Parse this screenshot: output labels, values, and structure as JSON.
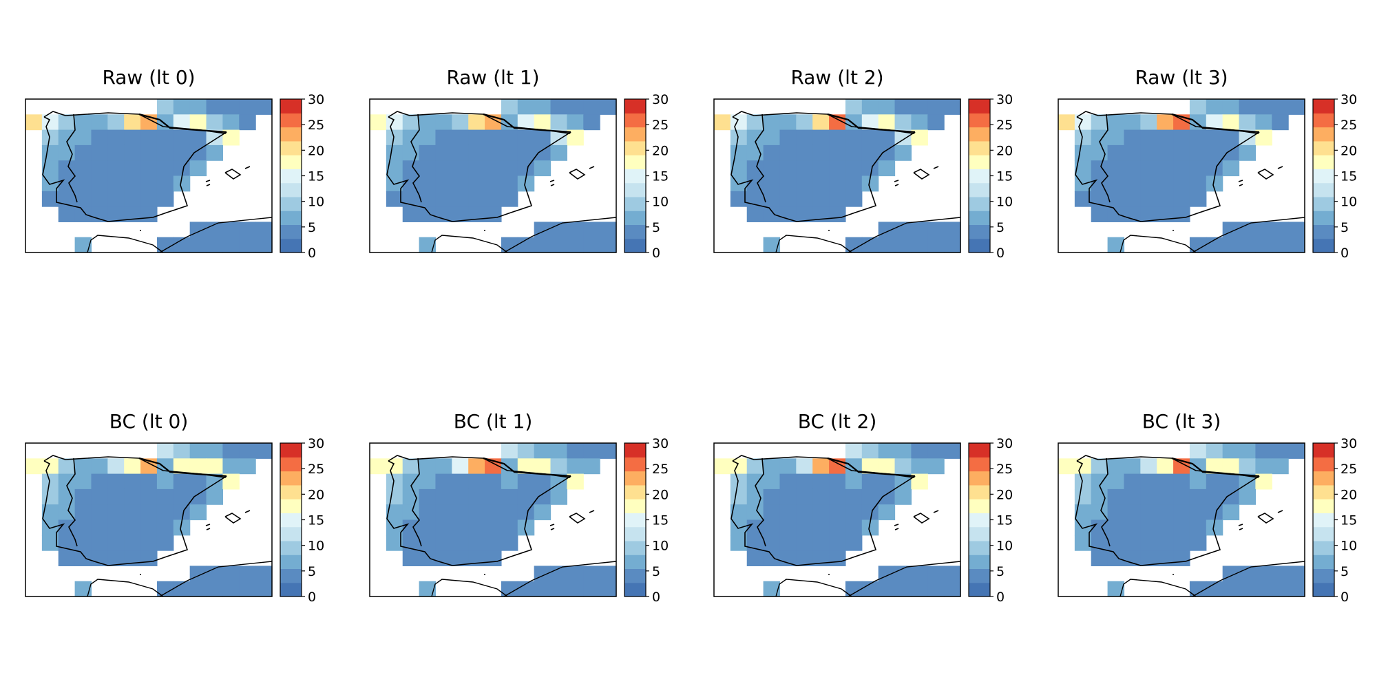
{
  "figure": {
    "panels": [
      {
        "title": "Raw (lt 0)",
        "field": "raw0"
      },
      {
        "title": "Raw (lt 1)",
        "field": "raw1"
      },
      {
        "title": "Raw (lt 2)",
        "field": "raw2"
      },
      {
        "title": "Raw (lt 3)",
        "field": "raw3"
      },
      {
        "title": "BC (lt 0)",
        "field": "bc0"
      },
      {
        "title": "BC (lt 1)",
        "field": "bc1"
      },
      {
        "title": "BC (lt 2)",
        "field": "bc2"
      },
      {
        "title": "BC (lt 3)",
        "field": "bc3"
      }
    ],
    "colorbar": {
      "range": [
        0,
        30
      ],
      "ticks": [
        "0",
        "5",
        "10",
        "15",
        "20",
        "25",
        "30"
      ],
      "colors": [
        "#4575b4",
        "#5a8bc1",
        "#74add1",
        "#9ecae1",
        "#c6e3ef",
        "#e0f3f8",
        "#ffffbf",
        "#fee090",
        "#fdae61",
        "#f46d43",
        "#d73027"
      ]
    },
    "fields": {
      "raw0": [
        [
          null,
          null,
          null,
          null,
          null,
          null,
          null,
          null,
          10,
          7,
          6,
          5,
          5,
          5,
          4
        ],
        [
          20,
          16,
          10,
          6,
          6,
          9,
          20,
          23,
          6,
          14,
          18,
          10,
          7,
          5,
          null
        ],
        [
          null,
          10,
          8,
          6,
          5,
          5,
          5,
          5,
          5,
          5,
          5,
          13,
          18,
          null,
          null
        ],
        [
          null,
          8,
          6,
          5,
          4,
          4,
          4,
          4,
          5,
          5,
          5,
          6,
          null,
          null,
          null
        ],
        [
          null,
          6,
          5,
          4,
          4,
          4,
          4,
          4,
          5,
          5,
          6,
          null,
          null,
          null,
          null
        ],
        [
          null,
          6,
          5,
          4,
          4,
          4,
          4,
          4,
          5,
          6,
          null,
          null,
          null,
          null,
          null
        ],
        [
          null,
          5,
          5,
          4,
          4,
          4,
          4,
          4,
          5,
          null,
          null,
          null,
          null,
          null,
          null
        ],
        [
          null,
          null,
          5,
          5,
          4,
          4,
          5,
          5,
          null,
          null,
          null,
          null,
          null,
          null,
          null
        ],
        [
          null,
          null,
          null,
          null,
          null,
          null,
          null,
          null,
          null,
          null,
          5,
          5,
          5,
          5,
          5
        ],
        [
          null,
          null,
          null,
          8,
          null,
          null,
          null,
          null,
          5,
          5,
          5,
          5,
          5,
          5,
          5
        ]
      ],
      "raw1": [
        [
          null,
          null,
          null,
          null,
          null,
          null,
          null,
          null,
          10,
          7,
          6,
          5,
          5,
          5,
          4
        ],
        [
          19,
          15,
          10,
          6,
          6,
          9,
          21,
          24,
          6,
          14,
          18,
          10,
          7,
          5,
          null
        ],
        [
          null,
          10,
          8,
          6,
          5,
          5,
          5,
          5,
          5,
          5,
          5,
          13,
          17,
          null,
          null
        ],
        [
          null,
          8,
          6,
          5,
          4,
          4,
          4,
          4,
          5,
          5,
          5,
          6,
          null,
          null,
          null
        ],
        [
          null,
          6,
          5,
          4,
          4,
          4,
          4,
          4,
          5,
          5,
          6,
          null,
          null,
          null,
          null
        ],
        [
          null,
          6,
          5,
          4,
          4,
          4,
          4,
          4,
          5,
          6,
          null,
          null,
          null,
          null,
          null
        ],
        [
          null,
          5,
          5,
          4,
          4,
          4,
          4,
          4,
          5,
          null,
          null,
          null,
          null,
          null,
          null
        ],
        [
          null,
          null,
          5,
          5,
          4,
          4,
          5,
          5,
          null,
          null,
          null,
          null,
          null,
          null,
          null
        ],
        [
          null,
          null,
          null,
          null,
          null,
          null,
          null,
          null,
          null,
          null,
          5,
          5,
          5,
          5,
          5
        ],
        [
          null,
          null,
          null,
          8,
          null,
          null,
          null,
          null,
          5,
          5,
          5,
          5,
          5,
          5,
          5
        ]
      ],
      "raw2": [
        [
          null,
          null,
          null,
          null,
          null,
          null,
          null,
          null,
          9,
          7,
          6,
          5,
          5,
          5,
          4
        ],
        [
          20,
          16,
          10,
          6,
          6,
          9,
          21,
          25,
          6,
          14,
          17,
          10,
          7,
          5,
          null
        ],
        [
          null,
          10,
          8,
          6,
          5,
          5,
          5,
          5,
          5,
          5,
          5,
          13,
          17,
          null,
          null
        ],
        [
          null,
          8,
          6,
          5,
          4,
          4,
          4,
          4,
          5,
          5,
          5,
          6,
          null,
          null,
          null
        ],
        [
          null,
          6,
          5,
          4,
          4,
          4,
          4,
          4,
          5,
          5,
          6,
          null,
          null,
          null,
          null
        ],
        [
          null,
          6,
          5,
          4,
          4,
          4,
          4,
          4,
          5,
          6,
          null,
          null,
          null,
          null,
          null
        ],
        [
          null,
          5,
          5,
          4,
          4,
          4,
          4,
          4,
          5,
          null,
          null,
          null,
          null,
          null,
          null
        ],
        [
          null,
          null,
          5,
          5,
          4,
          4,
          5,
          5,
          null,
          null,
          null,
          null,
          null,
          null,
          null
        ],
        [
          null,
          null,
          null,
          null,
          null,
          null,
          null,
          null,
          null,
          null,
          5,
          5,
          5,
          5,
          5
        ],
        [
          null,
          null,
          null,
          8,
          null,
          null,
          null,
          null,
          5,
          5,
          5,
          5,
          5,
          5,
          5
        ]
      ],
      "raw3": [
        [
          null,
          null,
          null,
          null,
          null,
          null,
          null,
          null,
          10,
          7,
          6,
          5,
          5,
          5,
          4
        ],
        [
          20,
          16,
          10,
          6,
          6,
          9,
          22,
          26,
          6,
          14,
          18,
          10,
          7,
          5,
          null
        ],
        [
          null,
          10,
          8,
          6,
          5,
          5,
          5,
          5,
          5,
          5,
          5,
          13,
          17,
          null,
          null
        ],
        [
          null,
          8,
          6,
          5,
          4,
          4,
          4,
          4,
          5,
          5,
          5,
          6,
          null,
          null,
          null
        ],
        [
          null,
          6,
          5,
          4,
          4,
          4,
          4,
          4,
          5,
          5,
          6,
          null,
          null,
          null,
          null
        ],
        [
          null,
          6,
          5,
          4,
          4,
          4,
          4,
          4,
          5,
          6,
          null,
          null,
          null,
          null,
          null
        ],
        [
          null,
          5,
          5,
          4,
          4,
          4,
          4,
          4,
          5,
          null,
          null,
          null,
          null,
          null,
          null
        ],
        [
          null,
          null,
          5,
          5,
          4,
          4,
          5,
          5,
          null,
          null,
          null,
          null,
          null,
          null,
          null
        ],
        [
          null,
          null,
          null,
          null,
          null,
          null,
          null,
          null,
          null,
          null,
          5,
          5,
          5,
          5,
          5
        ],
        [
          null,
          null,
          null,
          8,
          null,
          null,
          null,
          null,
          5,
          5,
          5,
          5,
          5,
          5,
          5
        ]
      ],
      "bc0": [
        [
          null,
          null,
          null,
          null,
          null,
          null,
          null,
          null,
          12,
          9,
          8,
          7,
          5,
          5,
          4
        ],
        [
          17,
          17,
          10,
          7,
          7,
          13,
          18,
          24,
          8,
          18,
          18,
          18,
          8,
          6,
          null
        ],
        [
          null,
          10,
          8,
          6,
          5,
          5,
          5,
          5,
          6,
          5,
          5,
          6,
          17,
          null,
          null
        ],
        [
          null,
          9,
          6,
          5,
          4,
          4,
          4,
          4,
          5,
          5,
          5,
          6,
          null,
          null,
          null
        ],
        [
          null,
          7,
          6,
          4,
          4,
          4,
          4,
          4,
          5,
          5,
          6,
          null,
          null,
          null,
          null
        ],
        [
          null,
          7,
          5,
          4,
          4,
          4,
          4,
          4,
          5,
          6,
          null,
          null,
          null,
          null,
          null
        ],
        [
          null,
          6,
          5,
          4,
          4,
          4,
          4,
          4,
          5,
          null,
          null,
          null,
          null,
          null,
          null
        ],
        [
          null,
          null,
          5,
          5,
          4,
          4,
          5,
          5,
          null,
          null,
          null,
          null,
          null,
          null,
          null
        ],
        [
          null,
          null,
          null,
          null,
          null,
          null,
          null,
          null,
          null,
          null,
          5,
          5,
          5,
          5,
          5
        ],
        [
          null,
          null,
          null,
          8,
          null,
          null,
          null,
          null,
          5,
          5,
          5,
          5,
          5,
          5,
          5
        ]
      ],
      "bc1": [
        [
          null,
          null,
          null,
          null,
          null,
          null,
          null,
          null,
          12,
          9,
          8,
          7,
          5,
          5,
          4
        ],
        [
          17,
          17,
          10,
          7,
          7,
          15,
          22,
          27,
          8,
          17,
          17,
          10,
          8,
          6,
          null
        ],
        [
          null,
          10,
          8,
          6,
          5,
          5,
          5,
          5,
          6,
          5,
          5,
          6,
          17,
          null,
          null
        ],
        [
          null,
          9,
          6,
          5,
          4,
          4,
          4,
          4,
          5,
          5,
          5,
          6,
          null,
          null,
          null
        ],
        [
          null,
          7,
          6,
          4,
          4,
          4,
          4,
          4,
          5,
          5,
          6,
          null,
          null,
          null,
          null
        ],
        [
          null,
          7,
          5,
          4,
          4,
          4,
          4,
          4,
          5,
          6,
          null,
          null,
          null,
          null,
          null
        ],
        [
          null,
          6,
          5,
          4,
          4,
          4,
          4,
          4,
          5,
          null,
          null,
          null,
          null,
          null,
          null
        ],
        [
          null,
          null,
          5,
          5,
          4,
          4,
          5,
          5,
          null,
          null,
          null,
          null,
          null,
          null,
          null
        ],
        [
          null,
          null,
          null,
          null,
          null,
          null,
          null,
          null,
          null,
          null,
          5,
          5,
          5,
          5,
          5
        ],
        [
          null,
          null,
          null,
          8,
          null,
          null,
          null,
          null,
          5,
          5,
          5,
          5,
          5,
          5,
          5
        ]
      ],
      "bc2": [
        [
          null,
          null,
          null,
          null,
          null,
          null,
          null,
          null,
          12,
          9,
          8,
          7,
          5,
          5,
          4
        ],
        [
          17,
          17,
          10,
          7,
          7,
          13,
          23,
          26,
          8,
          17,
          17,
          10,
          8,
          6,
          null
        ],
        [
          null,
          10,
          8,
          6,
          5,
          5,
          5,
          5,
          6,
          5,
          5,
          6,
          17,
          null,
          null
        ],
        [
          null,
          9,
          6,
          5,
          4,
          4,
          4,
          4,
          5,
          5,
          5,
          6,
          null,
          null,
          null
        ],
        [
          null,
          7,
          6,
          4,
          4,
          4,
          4,
          4,
          5,
          5,
          6,
          null,
          null,
          null,
          null
        ],
        [
          null,
          7,
          5,
          4,
          4,
          4,
          4,
          4,
          5,
          6,
          null,
          null,
          null,
          null,
          null
        ],
        [
          null,
          6,
          5,
          4,
          4,
          4,
          4,
          4,
          5,
          null,
          null,
          null,
          null,
          null,
          null
        ],
        [
          null,
          null,
          5,
          5,
          4,
          4,
          5,
          5,
          null,
          null,
          null,
          null,
          null,
          null,
          null
        ],
        [
          null,
          null,
          null,
          null,
          null,
          null,
          null,
          null,
          null,
          null,
          5,
          5,
          5,
          5,
          5
        ],
        [
          null,
          null,
          null,
          8,
          null,
          null,
          null,
          null,
          5,
          5,
          5,
          5,
          5,
          5,
          5
        ]
      ],
      "bc3": [
        [
          null,
          null,
          null,
          null,
          null,
          null,
          null,
          null,
          12,
          9,
          8,
          7,
          5,
          5,
          4
        ],
        [
          17,
          17,
          10,
          7,
          7,
          13,
          18,
          26,
          8,
          18,
          18,
          10,
          8,
          6,
          null
        ],
        [
          null,
          10,
          8,
          6,
          5,
          5,
          5,
          5,
          6,
          5,
          5,
          6,
          17,
          null,
          null
        ],
        [
          null,
          9,
          6,
          5,
          4,
          4,
          4,
          4,
          5,
          5,
          5,
          6,
          null,
          null,
          null
        ],
        [
          null,
          7,
          6,
          4,
          4,
          4,
          4,
          4,
          5,
          5,
          6,
          null,
          null,
          null,
          null
        ],
        [
          null,
          7,
          5,
          4,
          4,
          4,
          4,
          4,
          5,
          6,
          null,
          null,
          null,
          null,
          null
        ],
        [
          null,
          6,
          5,
          4,
          4,
          4,
          4,
          4,
          5,
          null,
          null,
          null,
          null,
          null,
          null
        ],
        [
          null,
          null,
          5,
          5,
          4,
          4,
          5,
          5,
          null,
          null,
          null,
          null,
          null,
          null,
          null
        ],
        [
          null,
          null,
          null,
          null,
          null,
          null,
          null,
          null,
          null,
          null,
          5,
          5,
          5,
          5,
          5
        ],
        [
          null,
          null,
          null,
          8,
          null,
          null,
          null,
          null,
          5,
          5,
          5,
          5,
          5,
          5,
          5
        ]
      ]
    }
  }
}
